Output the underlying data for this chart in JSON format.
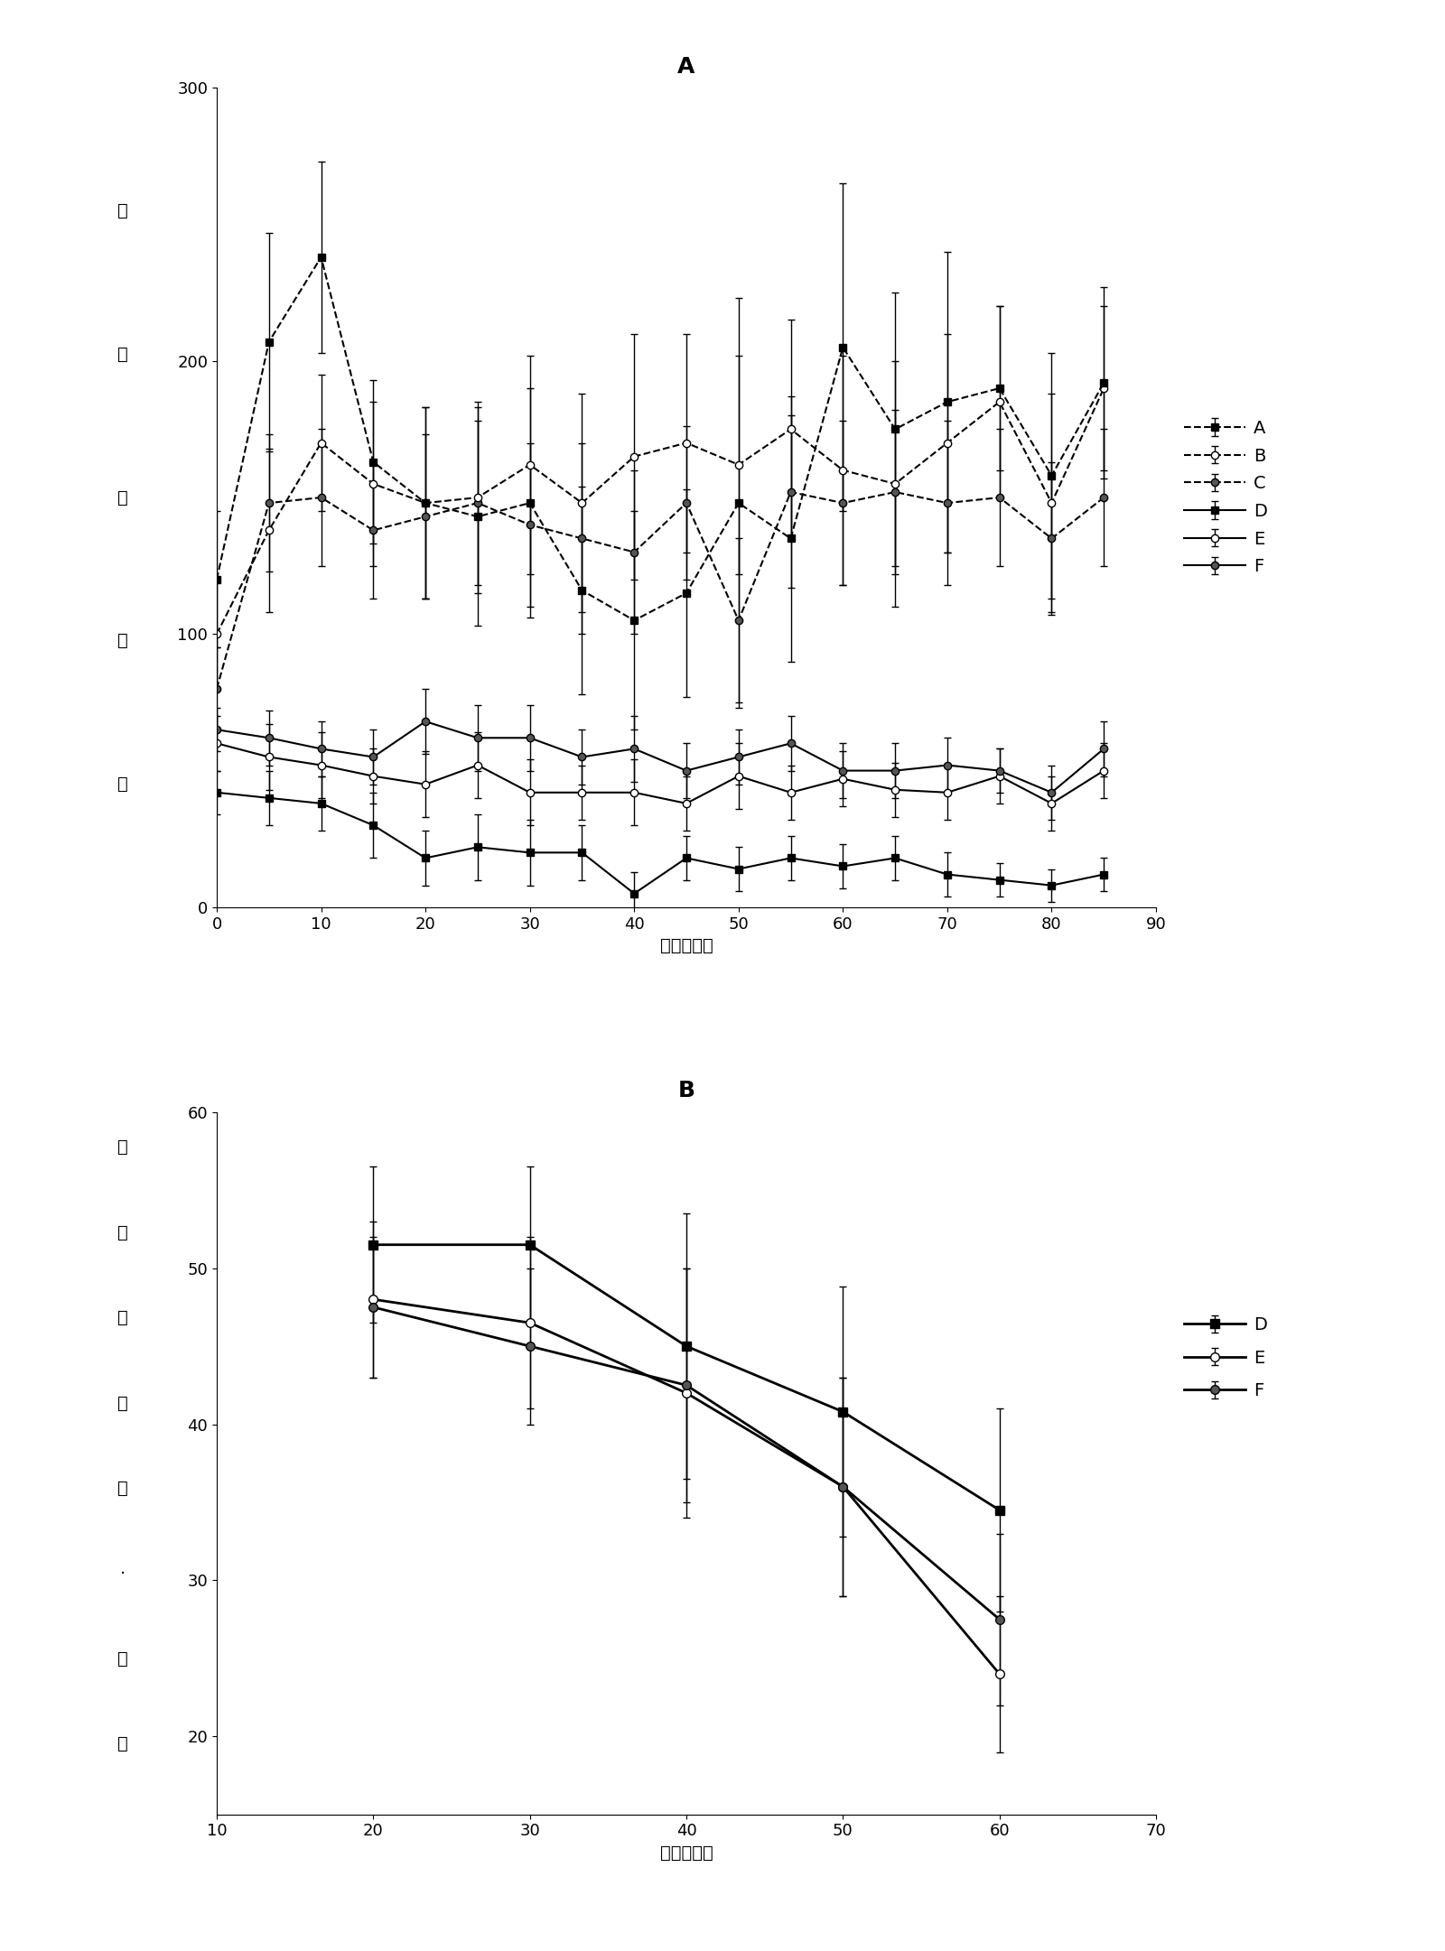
{
  "chart_A": {
    "title": "A",
    "xlabel": "时间（分）",
    "ylabel_chars": [
      "跨",
      "格",
      "跑",
      "动",
      "性"
    ],
    "xlim": [
      0,
      90
    ],
    "ylim": [
      0,
      300
    ],
    "xticks": [
      0,
      10,
      20,
      30,
      40,
      50,
      60,
      70,
      80,
      90
    ],
    "yticks": [
      0,
      100,
      200,
      300
    ],
    "x": [
      0,
      5,
      10,
      15,
      20,
      25,
      30,
      35,
      40,
      45,
      50,
      55,
      60,
      65,
      70,
      75,
      80,
      85
    ],
    "series": {
      "A": {
        "y": [
          120,
          207,
          238,
          163,
          148,
          143,
          148,
          116,
          105,
          115,
          148,
          135,
          205,
          175,
          185,
          190,
          158,
          192
        ],
        "yerr": [
          25,
          40,
          35,
          30,
          35,
          40,
          42,
          38,
          40,
          38,
          75,
          45,
          60,
          50,
          55,
          30,
          45,
          35
        ],
        "marker": "s",
        "linestyle": "--",
        "color": "#000000",
        "markersize": 6,
        "linewidth": 1.5,
        "label": "A",
        "markerfacecolor": "#000000"
      },
      "B": {
        "y": [
          100,
          138,
          170,
          155,
          148,
          150,
          162,
          148,
          165,
          170,
          162,
          175,
          160,
          155,
          170,
          185,
          148,
          190
        ],
        "yerr": [
          20,
          30,
          25,
          30,
          35,
          35,
          40,
          40,
          45,
          40,
          40,
          40,
          42,
          45,
          40,
          35,
          40,
          30
        ],
        "marker": "o",
        "linestyle": "--",
        "color": "#000000",
        "markersize": 6,
        "linewidth": 1.5,
        "label": "B",
        "markerfacecolor": "white"
      },
      "C": {
        "y": [
          80,
          148,
          150,
          138,
          143,
          148,
          140,
          135,
          130,
          148,
          105,
          152,
          148,
          152,
          148,
          150,
          135,
          150
        ],
        "yerr": [
          15,
          25,
          25,
          25,
          30,
          30,
          30,
          35,
          30,
          28,
          30,
          35,
          30,
          30,
          30,
          25,
          28,
          25
        ],
        "marker": "o",
        "linestyle": "--",
        "color": "#000000",
        "markersize": 6,
        "linewidth": 1.5,
        "label": "C",
        "markerfacecolor": "#555555"
      },
      "D": {
        "y": [
          42,
          40,
          38,
          30,
          18,
          22,
          20,
          20,
          5,
          18,
          14,
          18,
          15,
          18,
          12,
          10,
          8,
          12
        ],
        "yerr": [
          8,
          10,
          10,
          12,
          10,
          12,
          12,
          10,
          8,
          8,
          8,
          8,
          8,
          8,
          8,
          6,
          6,
          6
        ],
        "marker": "s",
        "linestyle": "-",
        "color": "#000000",
        "markersize": 6,
        "linewidth": 1.5,
        "label": "D",
        "markerfacecolor": "#000000"
      },
      "E": {
        "y": [
          60,
          55,
          52,
          48,
          45,
          52,
          42,
          42,
          42,
          38,
          48,
          42,
          47,
          43,
          42,
          48,
          38,
          50
        ],
        "yerr": [
          10,
          12,
          12,
          10,
          12,
          12,
          12,
          10,
          12,
          10,
          12,
          10,
          10,
          10,
          10,
          10,
          10,
          10
        ],
        "marker": "o",
        "linestyle": "-",
        "color": "#000000",
        "markersize": 6,
        "linewidth": 1.5,
        "label": "E",
        "markerfacecolor": "white"
      },
      "F": {
        "y": [
          65,
          62,
          58,
          55,
          68,
          62,
          62,
          55,
          58,
          50,
          55,
          60,
          50,
          50,
          52,
          50,
          42,
          58
        ],
        "yerr": [
          8,
          10,
          10,
          10,
          12,
          12,
          12,
          10,
          12,
          10,
          10,
          10,
          10,
          10,
          10,
          8,
          10,
          10
        ],
        "marker": "o",
        "linestyle": "-",
        "color": "#000000",
        "markersize": 6,
        "linewidth": 1.5,
        "label": "F",
        "markerfacecolor": "#555555"
      }
    }
  },
  "chart_B": {
    "title": "B",
    "xlabel": "时间（分）",
    "ylabel_chars": [
      "异",
      "常",
      "刻",
      "板",
      "性",
      "·",
      "动",
      "作"
    ],
    "xlim": [
      10,
      70
    ],
    "ylim": [
      15,
      60
    ],
    "xticks": [
      10,
      20,
      30,
      40,
      50,
      60,
      70
    ],
    "yticks": [
      20,
      30,
      40,
      50,
      60
    ],
    "x": [
      20,
      30,
      40,
      50,
      60
    ],
    "series": {
      "D": {
        "y": [
          51.5,
          51.5,
          45.0,
          40.8,
          34.5
        ],
        "yerr": [
          5.0,
          5.0,
          8.5,
          8.0,
          6.5
        ],
        "marker": "s",
        "linestyle": "-",
        "color": "#000000",
        "markersize": 7,
        "linewidth": 2.0,
        "label": "D",
        "markerfacecolor": "#000000"
      },
      "E": {
        "y": [
          48.0,
          46.5,
          42.0,
          36.0,
          24.0
        ],
        "yerr": [
          5.0,
          5.5,
          8.0,
          7.0,
          5.0
        ],
        "marker": "o",
        "linestyle": "-",
        "color": "#000000",
        "markersize": 7,
        "linewidth": 2.0,
        "label": "E",
        "markerfacecolor": "white"
      },
      "F": {
        "y": [
          47.5,
          45.0,
          42.5,
          36.0,
          27.5
        ],
        "yerr": [
          4.5,
          5.0,
          7.5,
          7.0,
          5.5
        ],
        "marker": "o",
        "linestyle": "-",
        "color": "#000000",
        "markersize": 7,
        "linewidth": 2.0,
        "label": "F",
        "markerfacecolor": "#555555"
      }
    }
  },
  "background_color": "#ffffff",
  "font_size": 14,
  "title_font_size": 18,
  "tick_font_size": 13
}
